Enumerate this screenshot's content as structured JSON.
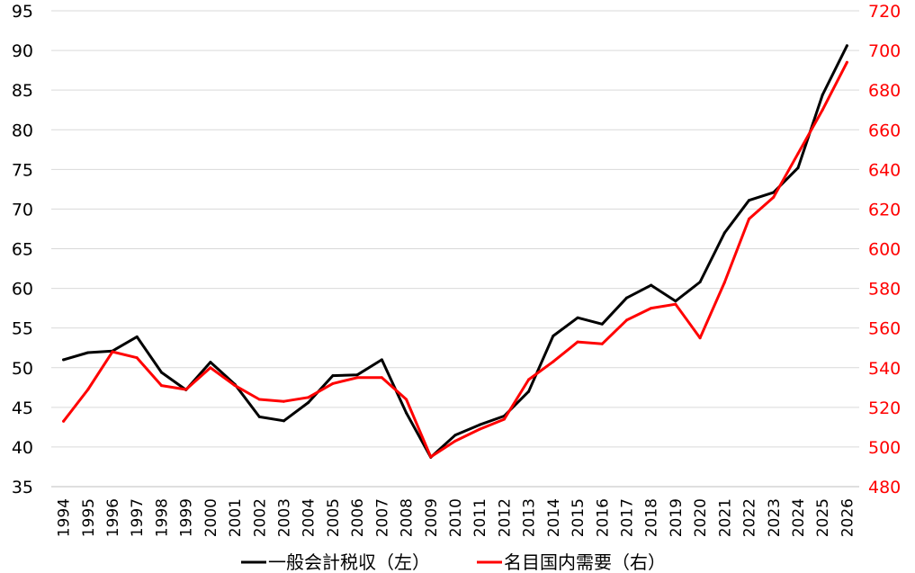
{
  "chart_data": {
    "type": "line",
    "categories": [
      "1994",
      "1995",
      "1996",
      "1997",
      "1998",
      "1999",
      "2000",
      "2001",
      "2002",
      "2003",
      "2004",
      "2005",
      "2006",
      "2007",
      "2008",
      "2009",
      "2010",
      "2011",
      "2012",
      "2013",
      "2014",
      "2015",
      "2016",
      "2017",
      "2018",
      "2019",
      "2020",
      "2021",
      "2022",
      "2023",
      "2024",
      "2025",
      "2026"
    ],
    "y_left": {
      "range": [
        35,
        95
      ],
      "ticks": [
        "35",
        "40",
        "45",
        "50",
        "55",
        "60",
        "65",
        "70",
        "75",
        "80",
        "85",
        "90",
        "95"
      ]
    },
    "y_right": {
      "range": [
        480,
        720
      ],
      "ticks": [
        "480",
        "500",
        "520",
        "540",
        "560",
        "580",
        "600",
        "620",
        "640",
        "660",
        "680",
        "700",
        "720"
      ]
    },
    "grid": true,
    "legend_position": "bottom",
    "series": [
      {
        "name": "一般会計税収（左）",
        "axis": "left",
        "color": "#000000",
        "values": [
          51.0,
          51.9,
          52.1,
          53.9,
          49.4,
          47.2,
          50.7,
          47.9,
          43.8,
          43.3,
          45.6,
          49.0,
          49.1,
          51.0,
          44.3,
          38.7,
          41.5,
          42.8,
          43.9,
          47.0,
          54.0,
          56.3,
          55.5,
          58.8,
          60.4,
          58.4,
          60.8,
          67.0,
          71.1,
          72.1,
          75.2,
          84.4,
          90.6
        ]
      },
      {
        "name": "名目国内需要（右）",
        "axis": "right",
        "color": "#ff0000",
        "values": [
          513,
          529,
          548,
          545,
          531,
          529,
          540,
          531,
          524,
          523,
          525,
          532,
          535,
          535,
          524,
          495,
          503,
          509,
          514,
          534,
          543,
          553,
          552,
          564,
          570,
          572,
          555,
          583,
          615,
          626,
          648,
          670,
          694
        ]
      }
    ]
  }
}
